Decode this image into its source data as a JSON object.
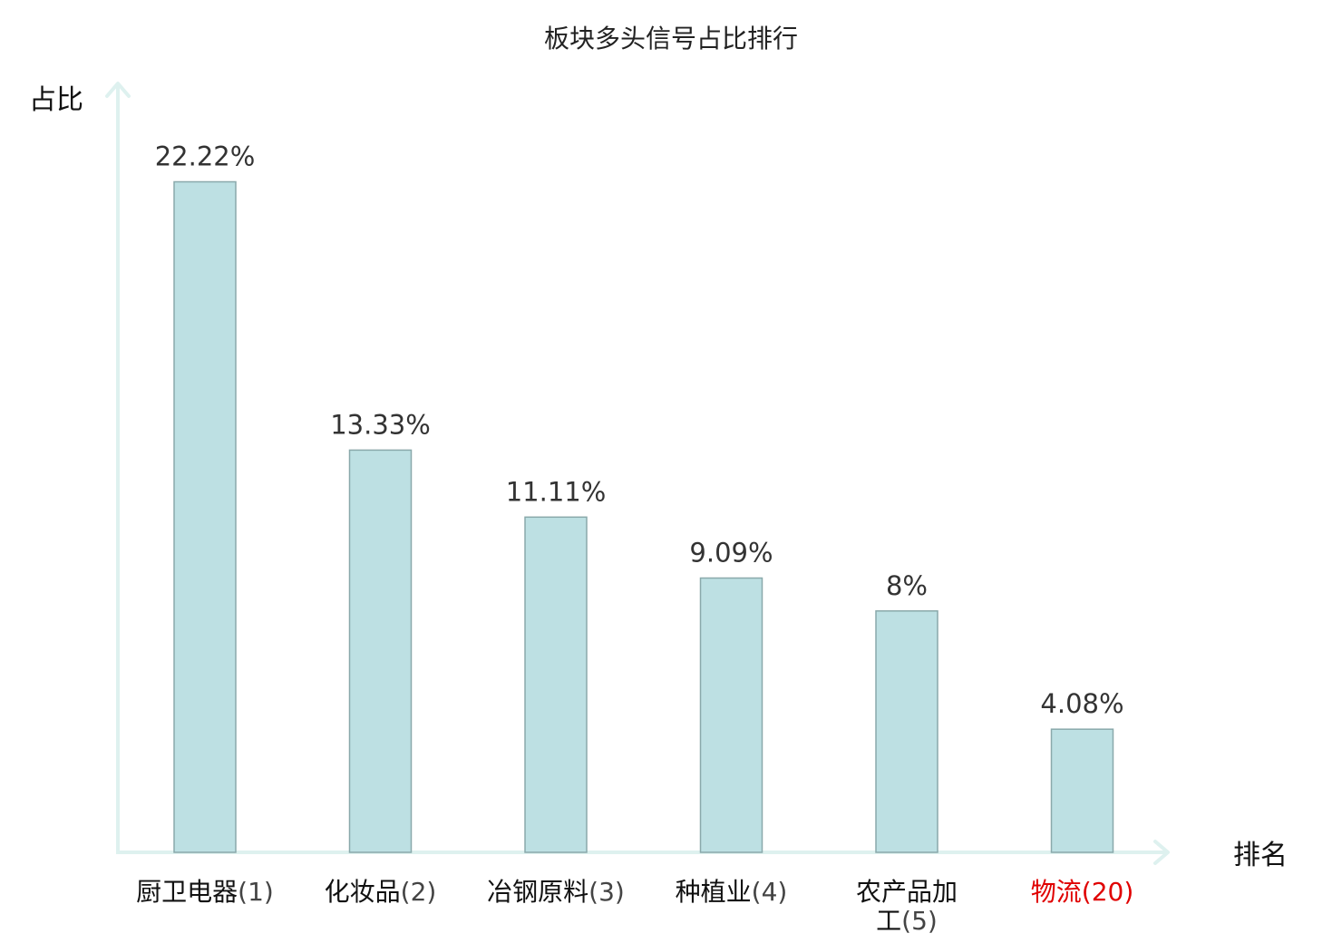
{
  "chart_data": {
    "type": "bar",
    "title": "板块多头信号占比排行",
    "ylabel": "占比",
    "xlabel": "排名",
    "ylim": [
      0,
      25
    ],
    "grid": false,
    "legend": "none",
    "categories": [
      {
        "name": "厨卫电器",
        "rank": "(1)",
        "highlight": false
      },
      {
        "name": "化妆品",
        "rank": "(2)",
        "highlight": false
      },
      {
        "name": "冶钢原料",
        "rank": "(3)",
        "highlight": false
      },
      {
        "name": "种植业",
        "rank": "(4)",
        "highlight": false
      },
      {
        "name": "农产品加工",
        "rank": "(5)",
        "highlight": false
      },
      {
        "name": "物流",
        "rank": "(20)",
        "highlight": true
      }
    ],
    "values": [
      22.22,
      13.33,
      11.11,
      9.09,
      8,
      4.08
    ],
    "value_labels": [
      "22.22%",
      "13.33%",
      "11.11%",
      "9.09%",
      "8%",
      "4.08%"
    ],
    "colors": {
      "bar_fill": "#bde0e3",
      "bar_stroke": "#8aa9ab",
      "axis": "#def1ef",
      "highlight_text": "#e00000"
    }
  }
}
